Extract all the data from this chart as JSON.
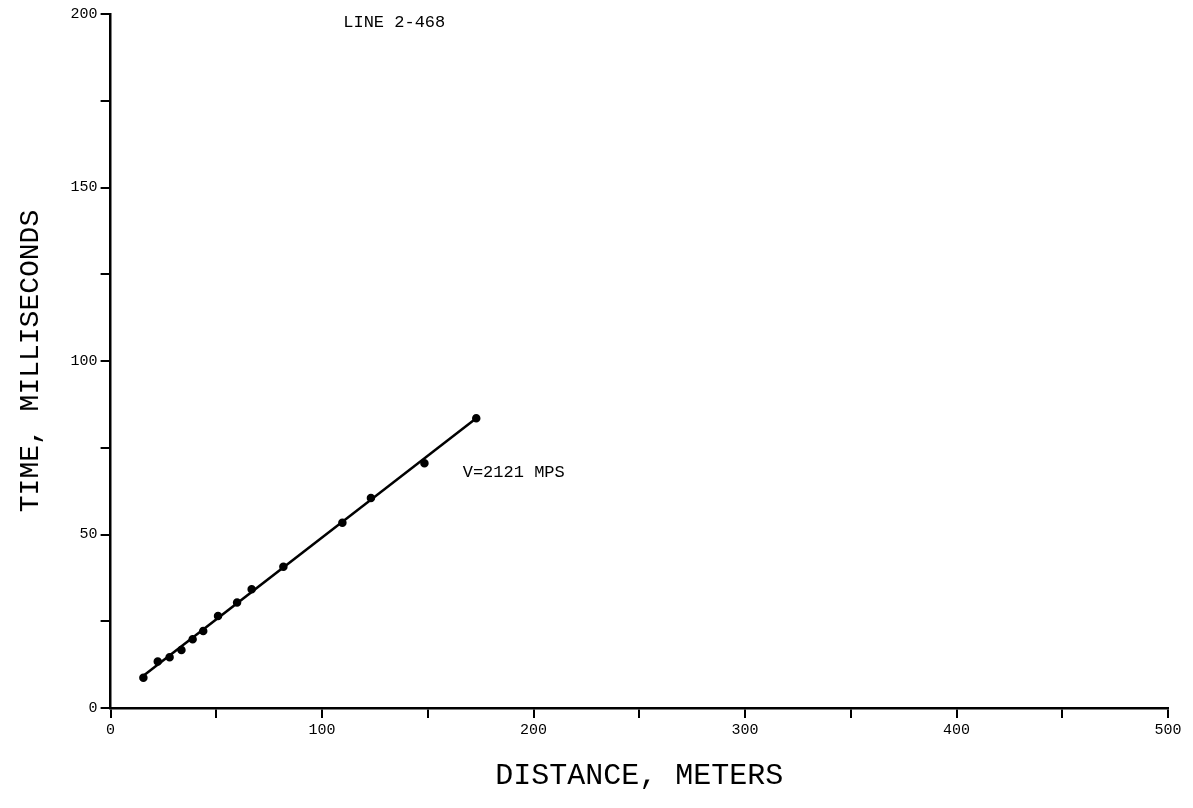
{
  "chart_data": {
    "type": "scatter",
    "title": "LINE 2-468",
    "xlabel": "DISTANCE, METERS",
    "ylabel": "TIME, MILLISECONDS",
    "xlim": [
      0,
      500
    ],
    "ylim": [
      0,
      200
    ],
    "xticks": [
      0,
      {
        "value": 50,
        "label": null
      },
      100,
      {
        "value": 150,
        "label": null
      },
      200,
      {
        "value": 250,
        "label": null
      },
      300,
      {
        "value": 350,
        "label": null
      },
      400,
      {
        "value": 450,
        "label": null
      },
      500
    ],
    "yticks": [
      0,
      {
        "value": 25,
        "label": null
      },
      50,
      {
        "value": 75,
        "label": null
      },
      100,
      {
        "value": 125,
        "label": null
      },
      150,
      {
        "value": 175,
        "label": null
      },
      200
    ],
    "grid": false,
    "legend": false,
    "annotations": [
      "V=2121 MPS"
    ],
    "series": [
      {
        "marker": "circle",
        "color": "#000000",
        "x": [
          15.5,
          22.3,
          27.9,
          33.5,
          38.8,
          43.8,
          50.8,
          59.8,
          66.7,
          81.7,
          109.6,
          123.1,
          148.4,
          172.9
        ],
        "values": [
          8.7,
          13.4,
          14.6,
          16.7,
          19.8,
          22.2,
          26.5,
          30.4,
          34.2,
          40.7,
          53.4,
          60.5,
          70.5,
          83.5
        ]
      },
      {
        "type": "line",
        "marker": "none",
        "line_style": "solid",
        "color": "#000000",
        "x": [
          15.5,
          172.9
        ],
        "values": [
          9.3,
          83.5
        ]
      }
    ]
  }
}
